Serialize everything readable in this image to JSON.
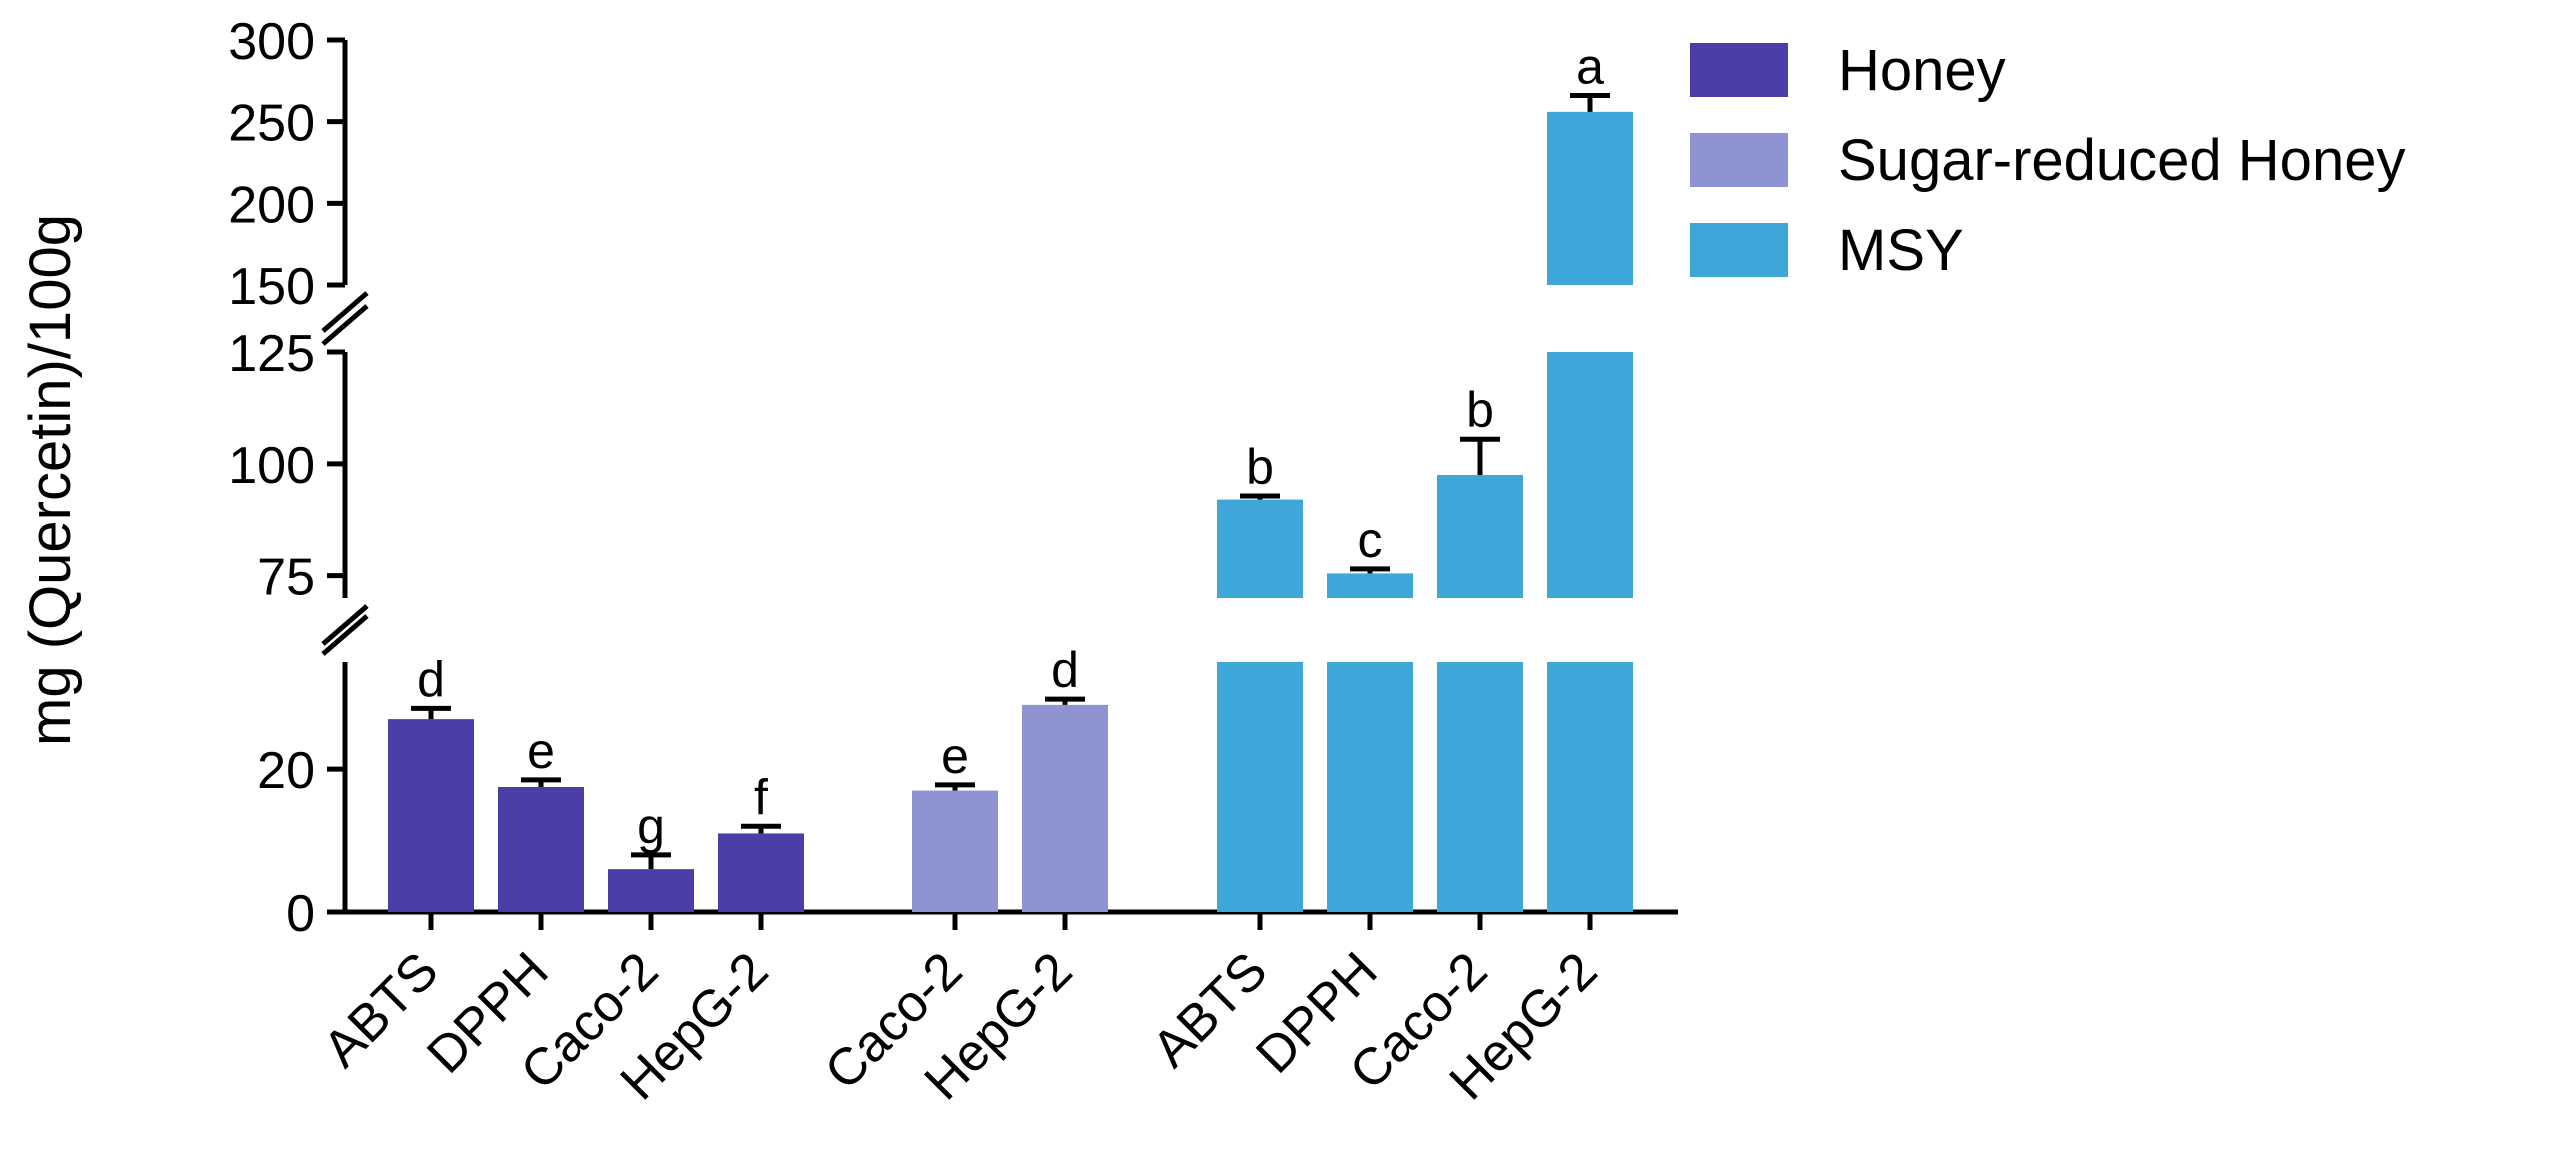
{
  "chart_data": {
    "type": "bar",
    "ylabel": "mg (Quercetin)/100g",
    "title": "",
    "xlabel": "",
    "y_segments": [
      {
        "range": [
          0,
          35
        ],
        "ticks": [
          0,
          20
        ]
      },
      {
        "range": [
          70,
          125
        ],
        "ticks": [
          75,
          100,
          125
        ]
      },
      {
        "range": [
          150,
          300
        ],
        "ticks": [
          150,
          200,
          250,
          300
        ]
      }
    ],
    "legend": {
      "position": "top-right",
      "entries": [
        {
          "label": "Honey",
          "color": "#4B3FA7"
        },
        {
          "label": "Sugar-reduced Honey",
          "color": "#8F93D1"
        },
        {
          "label": "MSY",
          "color": "#3FA6D9"
        }
      ]
    },
    "groups": [
      {
        "series": "Honey",
        "color": "#4B3FA7",
        "bars": [
          {
            "category": "ABTS",
            "value": 27.0,
            "error": 1.5,
            "letter": "d"
          },
          {
            "category": "DPPH",
            "value": 17.5,
            "error": 1.0,
            "letter": "e"
          },
          {
            "category": "Caco-2",
            "value": 6.0,
            "error": 2.0,
            "letter": "g"
          },
          {
            "category": "HepG-2",
            "value": 11.0,
            "error": 1.0,
            "letter": "f"
          }
        ]
      },
      {
        "series": "Sugar-reduced Honey",
        "color": "#8F93D1",
        "bars": [
          {
            "category": "Caco-2",
            "value": 17.0,
            "error": 0.8,
            "letter": "e"
          },
          {
            "category": "HepG-2",
            "value": 29.0,
            "error": 0.8,
            "letter": "d"
          }
        ]
      },
      {
        "series": "MSY",
        "color": "#3FA6D9",
        "bars": [
          {
            "category": "ABTS",
            "value": 92.0,
            "error": 0.8,
            "letter": "b"
          },
          {
            "category": "DPPH",
            "value": 75.5,
            "error": 1.0,
            "letter": "c"
          },
          {
            "category": "Caco-2",
            "value": 97.5,
            "error": 8.0,
            "letter": "b"
          },
          {
            "category": "HepG-2",
            "value": 256.0,
            "error": 10.0,
            "letter": "a"
          }
        ]
      }
    ]
  }
}
